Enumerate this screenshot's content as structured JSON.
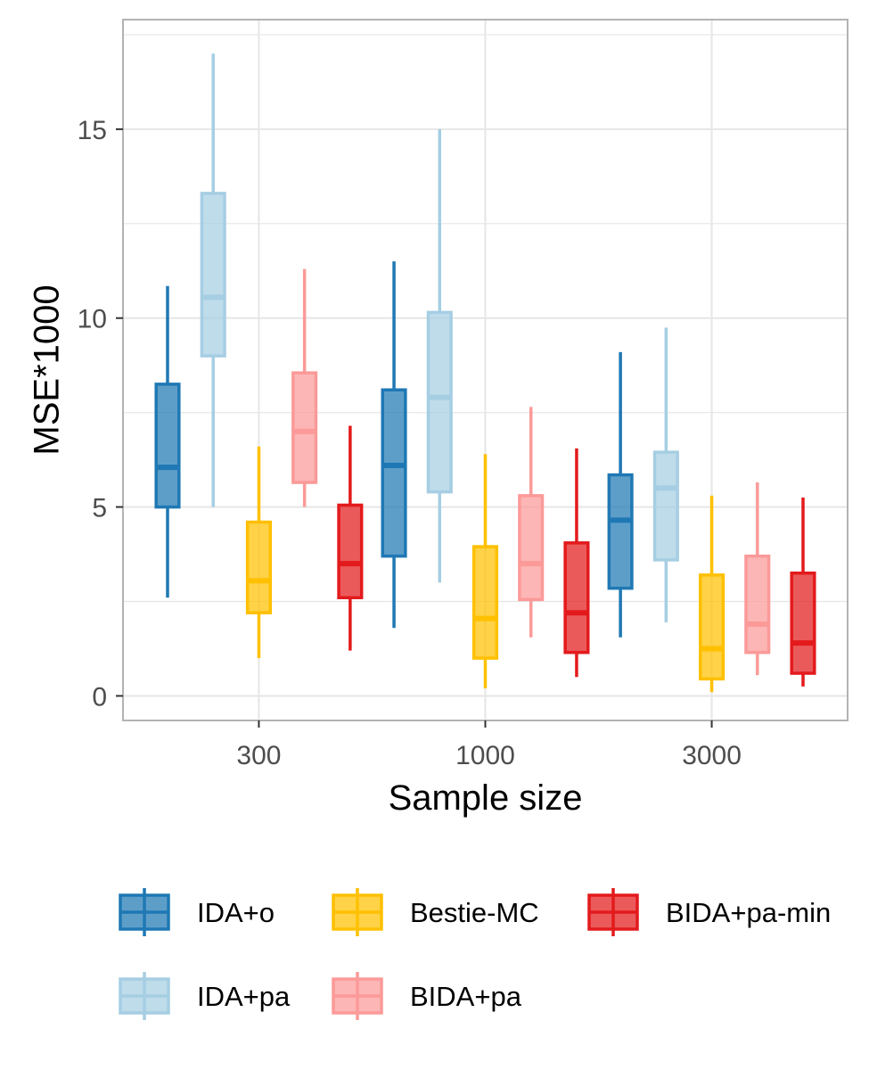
{
  "chart_data": {
    "type": "boxplot",
    "title": "",
    "xlabel": "Sample size",
    "ylabel": "MSE*1000",
    "categories": [
      "300",
      "1000",
      "3000"
    ],
    "yticks": [
      0,
      5,
      10,
      15
    ],
    "ytick_labels": [
      "0",
      "5",
      "10",
      "15"
    ],
    "ylim": [
      -0.65,
      17.9
    ],
    "grid": true,
    "legend_position": "bottom",
    "series": [
      {
        "name": "IDA+o",
        "color": "#1f78b4",
        "boxes": [
          {
            "whisker_low": 2.6,
            "q1": 5.0,
            "median": 6.05,
            "q3": 8.25,
            "whisker_high": 10.85
          },
          {
            "whisker_low": 1.8,
            "q1": 3.7,
            "median": 6.1,
            "q3": 8.1,
            "whisker_high": 11.5
          },
          {
            "whisker_low": 1.55,
            "q1": 2.85,
            "median": 4.65,
            "q3": 5.85,
            "whisker_high": 9.1
          }
        ]
      },
      {
        "name": "IDA+pa",
        "color": "#a6cee3",
        "boxes": [
          {
            "whisker_low": 5.0,
            "q1": 9.0,
            "median": 10.55,
            "q3": 13.3,
            "whisker_high": 17.0
          },
          {
            "whisker_low": 3.0,
            "q1": 5.4,
            "median": 7.9,
            "q3": 10.15,
            "whisker_high": 15.0
          },
          {
            "whisker_low": 1.95,
            "q1": 3.6,
            "median": 5.5,
            "q3": 6.45,
            "whisker_high": 9.75
          }
        ]
      },
      {
        "name": "Bestie-MC",
        "color": "#ffc000",
        "boxes": [
          {
            "whisker_low": 1.0,
            "q1": 2.2,
            "median": 3.05,
            "q3": 4.6,
            "whisker_high": 6.6
          },
          {
            "whisker_low": 0.2,
            "q1": 1.0,
            "median": 2.05,
            "q3": 3.95,
            "whisker_high": 6.4
          },
          {
            "whisker_low": 0.1,
            "q1": 0.45,
            "median": 1.25,
            "q3": 3.2,
            "whisker_high": 5.3
          }
        ]
      },
      {
        "name": "BIDA+pa",
        "color": "#fb9a99",
        "boxes": [
          {
            "whisker_low": 5.0,
            "q1": 5.65,
            "median": 7.0,
            "q3": 8.55,
            "whisker_high": 11.3
          },
          {
            "whisker_low": 1.55,
            "q1": 2.55,
            "median": 3.5,
            "q3": 5.3,
            "whisker_high": 7.65
          },
          {
            "whisker_low": 0.55,
            "q1": 1.15,
            "median": 1.9,
            "q3": 3.7,
            "whisker_high": 5.65
          }
        ]
      },
      {
        "name": "BIDA+pa-min",
        "color": "#e31a1c",
        "boxes": [
          {
            "whisker_low": 1.2,
            "q1": 2.6,
            "median": 3.5,
            "q3": 5.05,
            "whisker_high": 7.15
          },
          {
            "whisker_low": 0.5,
            "q1": 1.15,
            "median": 2.2,
            "q3": 4.05,
            "whisker_high": 6.55
          },
          {
            "whisker_low": 0.25,
            "q1": 0.6,
            "median": 1.4,
            "q3": 3.25,
            "whisker_high": 5.25
          }
        ]
      }
    ]
  }
}
